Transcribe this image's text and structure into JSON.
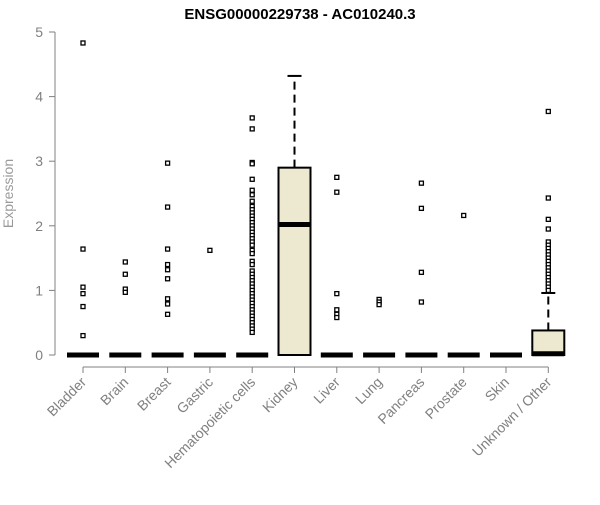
{
  "chart_data": {
    "type": "boxplot",
    "title": "ENSG00000229738 - AC010240.3",
    "xlabel": "",
    "ylabel": "Expression",
    "ylim": [
      0,
      5
    ],
    "yticks": [
      0,
      1,
      2,
      3,
      4,
      5
    ],
    "categories": [
      "Bladder",
      "Brain",
      "Breast",
      "Gastric",
      "Hematopoietic cells",
      "Kidney",
      "Liver",
      "Lung",
      "Pancreas",
      "Prostate",
      "Skin",
      "Unknown / Other"
    ],
    "box_fill": "#ede8d0",
    "boxes": [
      {
        "category": "Bladder",
        "q1": 0,
        "median": 0,
        "q3": 0,
        "whisker_low": 0,
        "whisker_high": 0,
        "outliers": [
          4.83,
          1.64,
          1.05,
          0.95,
          0.75,
          0.3
        ]
      },
      {
        "category": "Brain",
        "q1": 0,
        "median": 0,
        "q3": 0,
        "whisker_low": 0,
        "whisker_high": 0,
        "outliers": [
          1.44,
          1.25,
          1.02,
          0.97
        ]
      },
      {
        "category": "Breast",
        "q1": 0,
        "median": 0,
        "q3": 0,
        "whisker_low": 0,
        "whisker_high": 0,
        "outliers": [
          2.97,
          2.29,
          1.64,
          1.4,
          1.32,
          1.18,
          0.87,
          0.79,
          0.63
        ]
      },
      {
        "category": "Gastric",
        "q1": 0,
        "median": 0,
        "q3": 0,
        "whisker_low": 0,
        "whisker_high": 0,
        "outliers": [
          1.62
        ]
      },
      {
        "category": "Hematopoietic cells",
        "q1": 0,
        "median": 0,
        "q3": 0,
        "whisker_low": 0,
        "whisker_high": 0,
        "outliers": [
          3.67,
          3.5,
          2.98,
          2.96,
          2.72,
          2.55,
          2.48,
          2.38,
          2.3,
          2.25,
          2.2,
          2.15,
          2.1,
          2.05,
          2.0,
          1.95,
          1.9,
          1.85,
          1.8,
          1.75,
          1.7,
          1.62,
          1.57,
          1.45,
          1.4,
          1.3,
          1.25,
          1.2,
          1.15,
          1.1,
          1.05,
          1.0,
          0.95,
          0.9,
          0.85,
          0.8,
          0.75,
          0.7,
          0.65,
          0.6,
          0.55,
          0.5,
          0.45,
          0.4,
          0.35
        ]
      },
      {
        "category": "Kidney",
        "q1": 0,
        "median": 2.02,
        "q3": 2.9,
        "whisker_low": 0,
        "whisker_high": 4.32,
        "outliers": []
      },
      {
        "category": "Liver",
        "q1": 0,
        "median": 0,
        "q3": 0,
        "whisker_low": 0,
        "whisker_high": 0,
        "outliers": [
          2.75,
          2.52,
          0.95,
          0.7,
          0.63,
          0.58
        ]
      },
      {
        "category": "Lung",
        "q1": 0,
        "median": 0,
        "q3": 0,
        "whisker_low": 0,
        "whisker_high": 0,
        "outliers": [
          0.86,
          0.82,
          0.78
        ]
      },
      {
        "category": "Pancreas",
        "q1": 0,
        "median": 0,
        "q3": 0,
        "whisker_low": 0,
        "whisker_high": 0,
        "outliers": [
          2.66,
          2.27,
          1.28,
          0.82
        ]
      },
      {
        "category": "Prostate",
        "q1": 0,
        "median": 0,
        "q3": 0,
        "whisker_low": 0,
        "whisker_high": 0,
        "outliers": [
          2.16
        ]
      },
      {
        "category": "Skin",
        "q1": 0,
        "median": 0,
        "q3": 0,
        "whisker_low": 0,
        "whisker_high": 0,
        "outliers": []
      },
      {
        "category": "Unknown / Other",
        "q1": 0,
        "median": 0.02,
        "q3": 0.38,
        "whisker_low": 0,
        "whisker_high": 0.96,
        "outliers": [
          3.77,
          2.43,
          2.1,
          1.95,
          1.75,
          1.7,
          1.65,
          1.6,
          1.55,
          1.5,
          1.45,
          1.4,
          1.35,
          1.3,
          1.25,
          1.2,
          1.15,
          1.1,
          1.05,
          1.0
        ]
      }
    ]
  }
}
